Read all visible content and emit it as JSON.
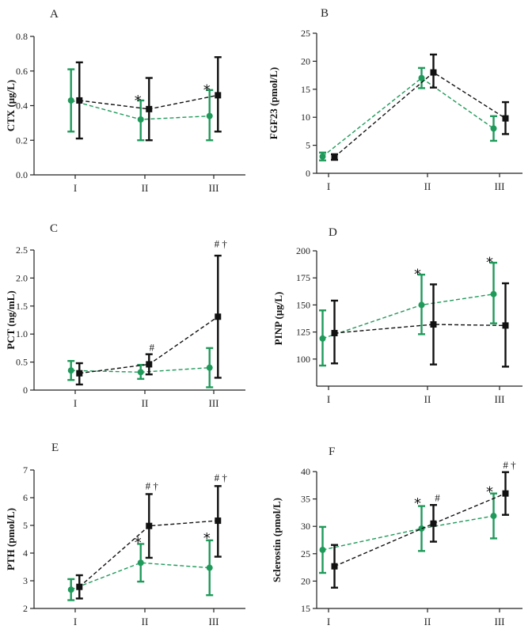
{
  "colors": {
    "group1": "#1f9a5a",
    "group2": "#111111"
  },
  "chart_data": [
    {
      "type": "line",
      "panel": "A",
      "ylabel": "CTX (μg/L)",
      "categories": [
        "I",
        "II",
        "III"
      ],
      "ylim": [
        0,
        0.8
      ],
      "yticks": [
        0.0,
        0.2,
        0.4,
        0.6,
        0.8
      ],
      "ytick_labels": [
        "0.0",
        "0.2",
        "0.4",
        "0.6",
        "0.8"
      ],
      "series": [
        {
          "values": [
            0.43,
            0.32,
            0.34
          ],
          "err_low": [
            0.25,
            0.2,
            0.2
          ],
          "err_high": [
            0.61,
            0.43,
            0.49
          ],
          "marker": "circle"
        },
        {
          "values": [
            0.43,
            0.38,
            0.46
          ],
          "err_low": [
            0.21,
            0.2,
            0.25
          ],
          "err_high": [
            0.65,
            0.56,
            0.68
          ],
          "marker": "square"
        }
      ],
      "annotations": [
        {
          "category": 1,
          "y": 0.44,
          "text": "*",
          "offset": -0.1
        },
        {
          "category": 2,
          "y": 0.5,
          "text": "*",
          "offset": -0.1
        }
      ]
    },
    {
      "type": "line",
      "panel": "B",
      "ylabel": "FGF23 (pmol/L)",
      "categories": [
        "I",
        "II",
        "III"
      ],
      "ylim": [
        0,
        25
      ],
      "yticks": [
        0,
        5,
        10,
        15,
        20,
        25
      ],
      "ytick_labels": [
        "0",
        "5",
        "10",
        "15",
        "20",
        "25"
      ],
      "series": [
        {
          "values": [
            3.0,
            17.0,
            8.0
          ],
          "err_low": [
            2.3,
            15.2,
            5.8
          ],
          "err_high": [
            3.7,
            18.8,
            10.2
          ],
          "marker": "circle"
        },
        {
          "values": [
            2.9,
            18.0,
            9.8
          ],
          "err_low": [
            2.4,
            15.3,
            7.0
          ],
          "err_high": [
            3.4,
            21.2,
            12.7
          ],
          "marker": "square"
        }
      ],
      "annotations": []
    },
    {
      "type": "line",
      "panel": "C",
      "ylabel": "PCT (ng/mL)",
      "categories": [
        "I",
        "II",
        "III"
      ],
      "ylim": [
        0,
        2.5
      ],
      "yticks": [
        0,
        0.5,
        1.0,
        1.5,
        2.0,
        2.5
      ],
      "ytick_labels": [
        "0",
        "0.5",
        "1.0",
        "1.5",
        "2.0",
        "2.5"
      ],
      "series": [
        {
          "values": [
            0.35,
            0.32,
            0.4
          ],
          "err_low": [
            0.18,
            0.2,
            0.05
          ],
          "err_high": [
            0.52,
            0.45,
            0.75
          ],
          "marker": "circle"
        },
        {
          "values": [
            0.3,
            0.46,
            1.31
          ],
          "err_low": [
            0.1,
            0.28,
            0.22
          ],
          "err_high": [
            0.48,
            0.64,
            2.4
          ],
          "marker": "square"
        }
      ],
      "annotations": [
        {
          "category": 1,
          "y": 0.7,
          "text": "#",
          "offset": 0.1
        },
        {
          "category": 2,
          "y": 2.55,
          "text": "# †",
          "offset": 0.1
        }
      ]
    },
    {
      "type": "line",
      "panel": "D",
      "ylabel": "PINP (μg/L)",
      "categories": [
        "I",
        "II",
        "III"
      ],
      "ylim": [
        75,
        200
      ],
      "yticks": [
        100,
        125,
        150,
        175,
        200
      ],
      "ytick_labels": [
        "100",
        "125",
        "150",
        "175",
        "200"
      ],
      "series": [
        {
          "values": [
            119,
            150,
            160
          ],
          "err_low": [
            94,
            123,
            133
          ],
          "err_high": [
            145,
            178,
            189
          ],
          "marker": "circle"
        },
        {
          "values": [
            124,
            132,
            131
          ],
          "err_low": [
            96,
            95,
            93
          ],
          "err_high": [
            154,
            169,
            170
          ],
          "marker": "square"
        }
      ],
      "annotations": [
        {
          "category": 1,
          "y": 180,
          "text": "*",
          "offset": -0.1
        },
        {
          "category": 2,
          "y": 191,
          "text": "*",
          "offset": -0.1
        }
      ]
    },
    {
      "type": "line",
      "panel": "E",
      "ylabel": "PTH (pmol/L)",
      "categories": [
        "I",
        "II",
        "III"
      ],
      "ylim": [
        2,
        7
      ],
      "yticks": [
        2,
        3,
        4,
        5,
        6,
        7
      ],
      "ytick_labels": [
        "2",
        "3",
        "4",
        "5",
        "6",
        "7"
      ],
      "series": [
        {
          "values": [
            2.68,
            3.65,
            3.47
          ],
          "err_low": [
            2.3,
            2.97,
            2.48
          ],
          "err_high": [
            3.06,
            4.33,
            4.46
          ],
          "marker": "circle"
        },
        {
          "values": [
            2.78,
            4.98,
            5.17
          ],
          "err_low": [
            2.36,
            3.83,
            3.87
          ],
          "err_high": [
            3.2,
            6.13,
            6.42
          ],
          "marker": "square"
        }
      ],
      "annotations": [
        {
          "category": 1,
          "y": 6.3,
          "text": "# †",
          "offset": 0.1
        },
        {
          "category": 1,
          "y": 4.45,
          "text": "*",
          "offset": -0.1
        },
        {
          "category": 2,
          "y": 6.6,
          "text": "# †",
          "offset": 0.1
        },
        {
          "category": 2,
          "y": 4.6,
          "text": "*",
          "offset": -0.1
        }
      ]
    },
    {
      "type": "line",
      "panel": "F",
      "ylabel": "Sclerostin (pmol/L)",
      "categories": [
        "I",
        "II",
        "III"
      ],
      "ylim": [
        15,
        40
      ],
      "yticks": [
        15,
        20,
        25,
        30,
        35,
        40
      ],
      "ytick_labels": [
        "15",
        "20",
        "25",
        "30",
        "35",
        "40"
      ],
      "series": [
        {
          "values": [
            25.7,
            29.6,
            31.9
          ],
          "err_low": [
            21.5,
            25.5,
            27.8
          ],
          "err_high": [
            29.9,
            33.7,
            36.0
          ],
          "marker": "circle"
        },
        {
          "values": [
            22.7,
            30.5,
            36.0
          ],
          "err_low": [
            18.8,
            27.2,
            32.1
          ],
          "err_high": [
            26.6,
            33.9,
            39.9
          ],
          "marker": "square"
        }
      ],
      "annotations": [
        {
          "category": 1,
          "y": 34.5,
          "text": "*",
          "offset": -0.1
        },
        {
          "category": 1,
          "y": 34.6,
          "text": "#",
          "offset": 0.1
        },
        {
          "category": 2,
          "y": 36.6,
          "text": "*",
          "offset": -0.1
        },
        {
          "category": 2,
          "y": 40.6,
          "text": "# †",
          "offset": 0.1
        }
      ]
    }
  ]
}
